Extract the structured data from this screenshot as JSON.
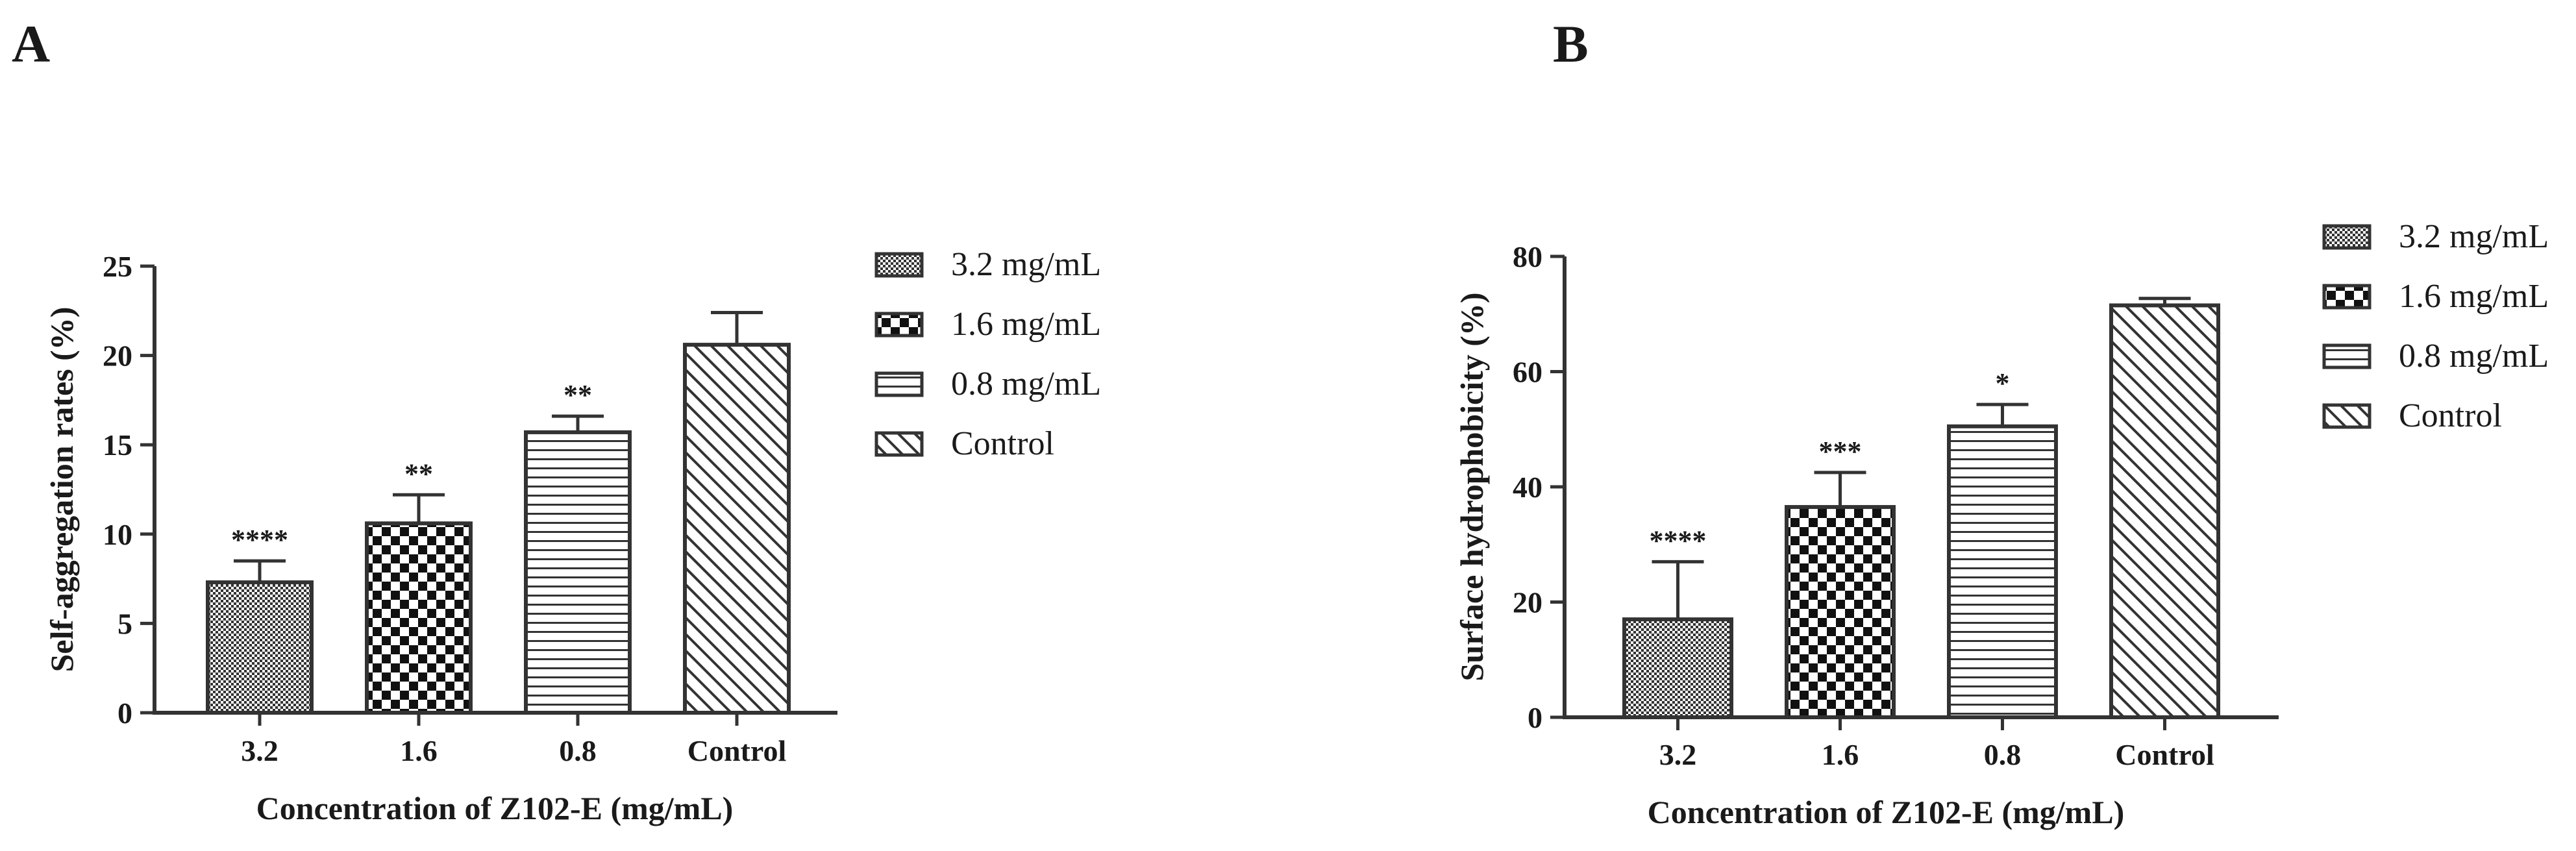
{
  "panels": [
    {
      "letter": "A",
      "chart_data": {
        "type": "bar",
        "categories": [
          "3.2",
          "1.6",
          "0.8",
          "Control"
        ],
        "values": [
          7.3,
          10.6,
          15.7,
          20.6
        ],
        "errors": [
          1.2,
          1.6,
          0.9,
          1.8
        ],
        "significance": [
          "****",
          "**",
          "**",
          ""
        ],
        "xlabel": "Concentration of Z102-E (mg/mL)",
        "ylabel": "Self-aggregation rates (%)",
        "ylim": [
          0,
          25
        ],
        "yticks": [
          0,
          5,
          10,
          15,
          20,
          25
        ],
        "legend": [
          "3.2 mg/mL",
          "1.6 mg/mL",
          "0.8 mg/mL",
          "Control"
        ],
        "legend_position": "right",
        "grid": false
      }
    },
    {
      "letter": "B",
      "chart_data": {
        "type": "bar",
        "categories": [
          "3.2",
          "1.6",
          "0.8",
          "Control"
        ],
        "values": [
          17.0,
          36.5,
          50.5,
          71.5
        ],
        "errors": [
          10.0,
          6.0,
          3.8,
          1.2
        ],
        "significance": [
          "****",
          "***",
          "*",
          ""
        ],
        "xlabel": "Concentration of Z102-E (mg/mL)",
        "ylabel": "Surface hydrophobicity (%)",
        "ylim": [
          0,
          80
        ],
        "yticks": [
          0,
          20,
          40,
          60,
          80
        ],
        "legend": [
          "3.2 mg/mL",
          "1.6 mg/mL",
          "0.8 mg/mL",
          "Control"
        ],
        "legend_position": "right",
        "grid": false
      }
    }
  ],
  "patterns": [
    "fine-check",
    "checker",
    "horizontal-lines",
    "diagonal-lines"
  ],
  "colors": {
    "ink": "#1a1a1a",
    "bar_stroke": "#333333",
    "background": "#ffffff"
  }
}
